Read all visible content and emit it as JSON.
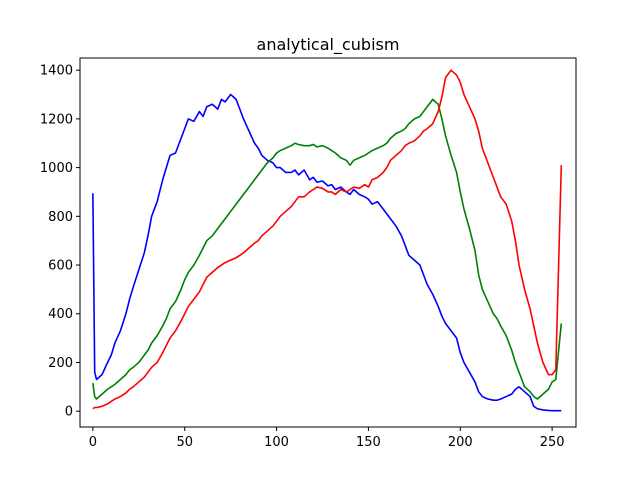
{
  "chart_data": {
    "type": "line",
    "title": "analytical_cubism",
    "xlabel": "",
    "ylabel": "",
    "xlim": [
      -7,
      263
    ],
    "ylim": [
      -65,
      1450
    ],
    "xticks": [
      0,
      50,
      100,
      150,
      200,
      250
    ],
    "yticks": [
      0,
      200,
      400,
      600,
      800,
      1000,
      1200,
      1400
    ],
    "xtick_labels": [
      "0",
      "50",
      "100",
      "150",
      "200",
      "250"
    ],
    "ytick_labels": [
      "0",
      "200",
      "400",
      "600",
      "800",
      "1000",
      "1200",
      "1400"
    ],
    "grid": false,
    "legend": "none",
    "series": [
      {
        "color": "#0000ff",
        "x": [
          0,
          1,
          2,
          5,
          8,
          10,
          12,
          15,
          18,
          20,
          22,
          25,
          28,
          30,
          32,
          35,
          38,
          40,
          42,
          45,
          48,
          50,
          52,
          55,
          58,
          60,
          62,
          65,
          68,
          70,
          72,
          75,
          78,
          80,
          82,
          85,
          88,
          90,
          92,
          95,
          98,
          100,
          102,
          105,
          108,
          110,
          112,
          115,
          118,
          120,
          122,
          125,
          128,
          130,
          132,
          135,
          138,
          140,
          142,
          145,
          148,
          150,
          152,
          155,
          158,
          160,
          162,
          165,
          168,
          170,
          172,
          175,
          178,
          180,
          182,
          185,
          188,
          190,
          192,
          195,
          198,
          200,
          202,
          205,
          208,
          210,
          212,
          215,
          218,
          220,
          222,
          225,
          228,
          230,
          232,
          235,
          238,
          240,
          242,
          245,
          248,
          250,
          252,
          255
        ],
        "y": [
          895,
          160,
          130,
          150,
          200,
          230,
          280,
          330,
          400,
          460,
          510,
          580,
          650,
          720,
          800,
          860,
          950,
          1000,
          1050,
          1060,
          1120,
          1160,
          1200,
          1190,
          1230,
          1210,
          1250,
          1260,
          1240,
          1280,
          1270,
          1300,
          1280,
          1240,
          1200,
          1150,
          1100,
          1080,
          1050,
          1030,
          1020,
          1000,
          1000,
          980,
          980,
          990,
          970,
          990,
          950,
          960,
          940,
          945,
          925,
          930,
          910,
          920,
          900,
          890,
          910,
          890,
          880,
          870,
          850,
          860,
          830,
          810,
          790,
          760,
          720,
          680,
          640,
          620,
          600,
          560,
          520,
          480,
          430,
          390,
          360,
          330,
          300,
          240,
          200,
          160,
          120,
          80,
          60,
          50,
          45,
          45,
          50,
          60,
          70,
          90,
          100,
          80,
          60,
          20,
          10,
          5,
          3,
          2,
          2,
          2
        ]
      },
      {
        "color": "#008000",
        "x": [
          0,
          1,
          2,
          5,
          8,
          10,
          12,
          15,
          18,
          20,
          22,
          25,
          28,
          30,
          32,
          35,
          38,
          40,
          42,
          45,
          48,
          50,
          52,
          55,
          58,
          60,
          62,
          65,
          68,
          70,
          72,
          75,
          78,
          80,
          82,
          85,
          88,
          90,
          92,
          95,
          98,
          100,
          102,
          105,
          108,
          110,
          112,
          115,
          118,
          120,
          122,
          125,
          128,
          130,
          132,
          135,
          138,
          140,
          142,
          145,
          148,
          150,
          152,
          155,
          158,
          160,
          162,
          165,
          168,
          170,
          172,
          175,
          178,
          180,
          182,
          185,
          188,
          190,
          192,
          195,
          198,
          200,
          202,
          205,
          208,
          210,
          212,
          215,
          218,
          220,
          222,
          225,
          228,
          230,
          232,
          235,
          238,
          240,
          242,
          245,
          248,
          250,
          252,
          255
        ],
        "y": [
          115,
          60,
          50,
          70,
          90,
          100,
          110,
          130,
          150,
          170,
          180,
          200,
          230,
          250,
          280,
          310,
          350,
          380,
          420,
          450,
          500,
          540,
          570,
          600,
          640,
          670,
          700,
          720,
          750,
          770,
          790,
          820,
          850,
          870,
          890,
          920,
          950,
          970,
          990,
          1020,
          1040,
          1060,
          1070,
          1080,
          1090,
          1100,
          1095,
          1090,
          1090,
          1095,
          1085,
          1090,
          1080,
          1070,
          1060,
          1040,
          1030,
          1010,
          1030,
          1040,
          1050,
          1060,
          1070,
          1080,
          1090,
          1100,
          1120,
          1140,
          1150,
          1160,
          1180,
          1200,
          1210,
          1230,
          1250,
          1280,
          1260,
          1200,
          1130,
          1050,
          980,
          900,
          830,
          750,
          660,
          560,
          500,
          450,
          400,
          380,
          350,
          310,
          250,
          200,
          160,
          100,
          80,
          60,
          50,
          70,
          90,
          120,
          130,
          360
        ]
      },
      {
        "color": "#ff0000",
        "x": [
          0,
          1,
          2,
          5,
          8,
          10,
          12,
          15,
          18,
          20,
          22,
          25,
          28,
          30,
          32,
          35,
          38,
          40,
          42,
          45,
          48,
          50,
          52,
          55,
          58,
          60,
          62,
          65,
          68,
          70,
          72,
          75,
          78,
          80,
          82,
          85,
          88,
          90,
          92,
          95,
          98,
          100,
          102,
          105,
          108,
          110,
          112,
          115,
          118,
          120,
          122,
          125,
          128,
          130,
          132,
          135,
          138,
          140,
          142,
          145,
          148,
          150,
          152,
          155,
          158,
          160,
          162,
          165,
          168,
          170,
          172,
          175,
          178,
          180,
          182,
          185,
          188,
          190,
          192,
          195,
          198,
          200,
          202,
          205,
          208,
          210,
          212,
          215,
          218,
          220,
          222,
          225,
          228,
          230,
          232,
          235,
          238,
          240,
          242,
          245,
          248,
          250,
          252,
          255
        ],
        "y": [
          10,
          15,
          15,
          20,
          30,
          40,
          50,
          60,
          75,
          90,
          100,
          120,
          140,
          160,
          180,
          200,
          240,
          270,
          300,
          330,
          370,
          400,
          430,
          460,
          490,
          520,
          550,
          570,
          590,
          600,
          610,
          620,
          630,
          640,
          650,
          670,
          690,
          700,
          720,
          740,
          760,
          780,
          800,
          820,
          840,
          860,
          880,
          880,
          900,
          910,
          920,
          915,
          900,
          900,
          890,
          910,
          900,
          910,
          920,
          915,
          930,
          920,
          950,
          960,
          980,
          1000,
          1030,
          1050,
          1070,
          1090,
          1100,
          1110,
          1130,
          1150,
          1160,
          1180,
          1230,
          1290,
          1370,
          1400,
          1380,
          1350,
          1300,
          1250,
          1200,
          1150,
          1080,
          1020,
          960,
          920,
          880,
          850,
          780,
          700,
          600,
          500,
          420,
          350,
          280,
          200,
          150,
          150,
          170,
          1010
        ]
      }
    ]
  }
}
